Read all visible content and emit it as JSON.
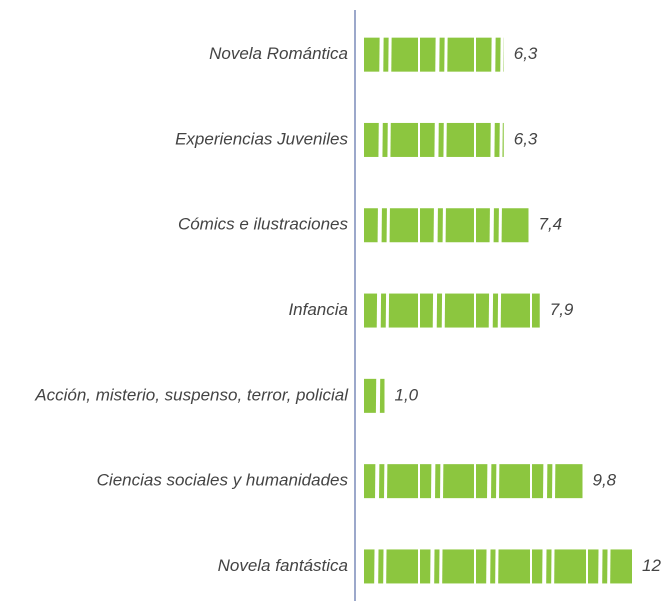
{
  "chart_data": {
    "type": "bar",
    "orientation": "horizontal",
    "categories": [
      "Novela Romántica",
      "Experiencias Juveniles",
      "Cómics e ilustraciones",
      "Infancia",
      "Acción, misterio, suspenso, terror, policial",
      "Ciencias sociales y humanidades",
      "Novela fantástica"
    ],
    "values": [
      6.3,
      6.3,
      7.4,
      7.9,
      1.0,
      9.8,
      12
    ],
    "value_labels": [
      "6,3",
      "6,3",
      "7,4",
      "7,9",
      "1,0",
      "9,8",
      "12"
    ],
    "color": "#8cc63f",
    "xlim": [
      0,
      12
    ]
  }
}
